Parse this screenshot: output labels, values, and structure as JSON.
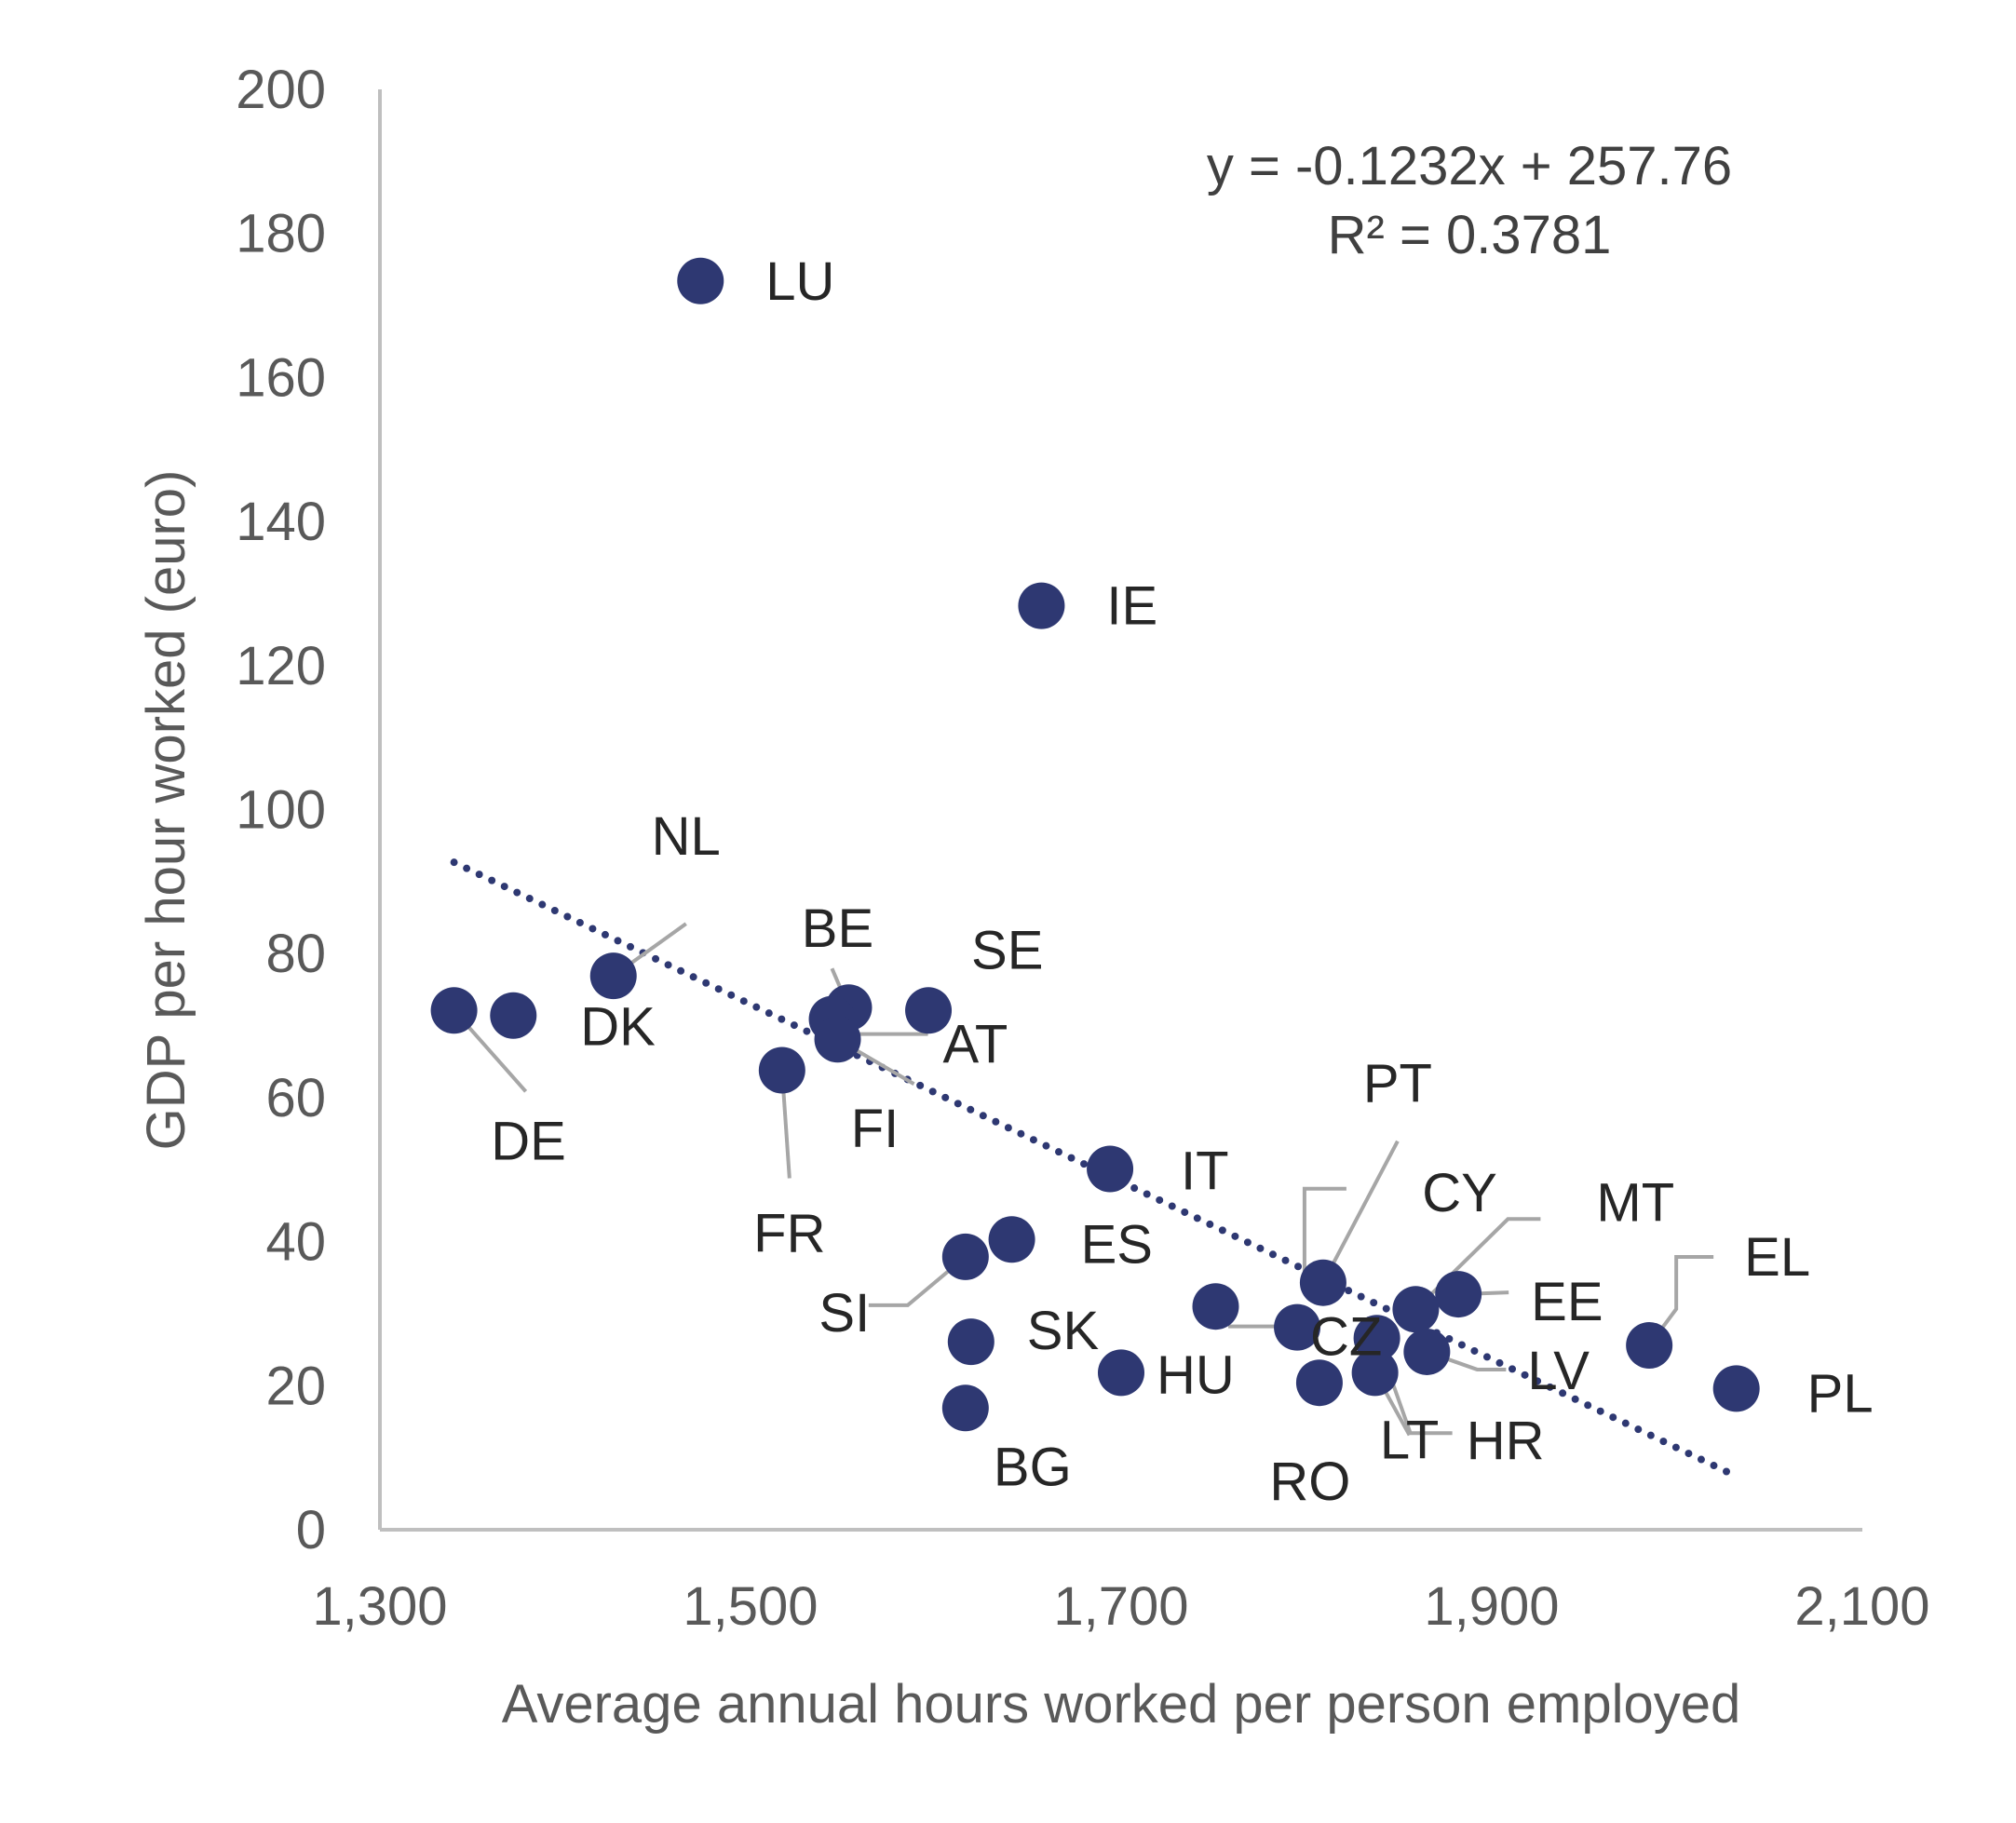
{
  "chart_data": {
    "type": "scatter",
    "title": "",
    "xlabel": "Average annual hours worked per person employed",
    "ylabel": "GDP per hour worked (euro)",
    "xlim": [
      1300,
      2100
    ],
    "ylim": [
      0,
      200
    ],
    "x_ticks": [
      "1,300",
      "1,500",
      "1,700",
      "1,900",
      "2,100"
    ],
    "y_ticks": [
      "0",
      "20",
      "40",
      "60",
      "80",
      "100",
      "120",
      "140",
      "160",
      "180",
      "200"
    ],
    "grid": false,
    "legend": "none",
    "marker_color": "#2E3872",
    "trendline": {
      "slope": -0.1232,
      "intercept": 257.76,
      "x_start": 1340,
      "x_end": 2030,
      "style": "dotted",
      "color": "#2E3872",
      "equation": "y = -0.1232x + 257.76",
      "r_squared": "R² = 0.3781"
    },
    "points": [
      {
        "label": "LU",
        "x": 1473,
        "y": 173.4
      },
      {
        "label": "IE",
        "x": 1657,
        "y": 128.3
      },
      {
        "label": "NL",
        "x": 1426,
        "y": 76.9
      },
      {
        "label": "DE",
        "x": 1340,
        "y": 72.1
      },
      {
        "label": "DK",
        "x": 1372,
        "y": 71.4
      },
      {
        "label": "BE",
        "x": 1553,
        "y": 72.5
      },
      {
        "label": "SE",
        "x": 1596,
        "y": 72.1
      },
      {
        "label": "AT",
        "x": 1544,
        "y": 70.9
      },
      {
        "label": "FI",
        "x": 1547,
        "y": 68.1
      },
      {
        "label": "FR",
        "x": 1517,
        "y": 63.8
      },
      {
        "label": "IT",
        "x": 1694,
        "y": 50.1
      },
      {
        "label": "ES",
        "x": 1641,
        "y": 40.3
      },
      {
        "label": "SI",
        "x": 1616,
        "y": 37.9
      },
      {
        "label": "SK",
        "x": 1619,
        "y": 26.1
      },
      {
        "label": "BG",
        "x": 1616,
        "y": 16.9
      },
      {
        "label": "HU",
        "x": 1700,
        "y": 21.8
      },
      {
        "label": "PT",
        "x": 1809,
        "y": 34.3
      },
      {
        "label": "CY",
        "x": 1751,
        "y": 31.0
      },
      {
        "label": "CZ",
        "x": 1795,
        "y": 28.1
      },
      {
        "label": "RO",
        "x": 1807,
        "y": 20.4
      },
      {
        "label": "LT",
        "x": 1837,
        "y": 21.8
      },
      {
        "label": "HR",
        "x": 1838,
        "y": 26.6
      },
      {
        "label": "MT",
        "x": 1859,
        "y": 30.6
      },
      {
        "label": "EE",
        "x": 1882,
        "y": 32.7
      },
      {
        "label": "LV",
        "x": 1865,
        "y": 24.7
      },
      {
        "label": "EL",
        "x": 1985,
        "y": 25.6
      },
      {
        "label": "PL",
        "x": 2032,
        "y": 19.6
      }
    ]
  }
}
